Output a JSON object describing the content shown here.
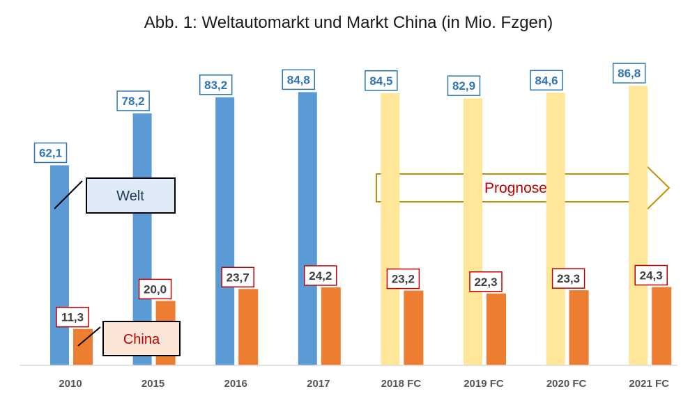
{
  "chart_data": {
    "type": "bar",
    "title": "Abb. 1: Weltautomarkt und Markt China (in Mio. Fzgen)",
    "categories": [
      "2010",
      "2015",
      "2016",
      "2017",
      "2018 FC",
      "2019 FC",
      "2020 FC",
      "2021 FC"
    ],
    "series": [
      {
        "name": "Welt",
        "values": [
          62.1,
          78.2,
          83.2,
          84.8,
          84.5,
          82.9,
          84.6,
          86.8
        ],
        "labels": [
          "62,1",
          "78,2",
          "83,2",
          "84,8",
          "84,5",
          "82,9",
          "84,6",
          "86,8"
        ],
        "color": "#5b9bd5",
        "forecast_color": "#ffe699"
      },
      {
        "name": "China",
        "values": [
          11.3,
          20.0,
          23.7,
          24.2,
          23.2,
          22.3,
          23.3,
          24.3
        ],
        "labels": [
          "11,3",
          "20,0",
          "23,7",
          "24,2",
          "23,2",
          "22,3",
          "23,3",
          "24,3"
        ],
        "color": "#ed7d31"
      }
    ],
    "forecast_from_index": 4,
    "ylim": [
      0,
      100
    ],
    "grid": false,
    "annotation": "Prognose"
  },
  "colors": {
    "world_label": "#2e75b6",
    "china_label_border": "#c00000",
    "world_legend_fill": "#deebf7",
    "china_legend_fill": "#fbe5d6",
    "arrow_stroke": "#bf9000",
    "arrow_text": "#c00000"
  }
}
